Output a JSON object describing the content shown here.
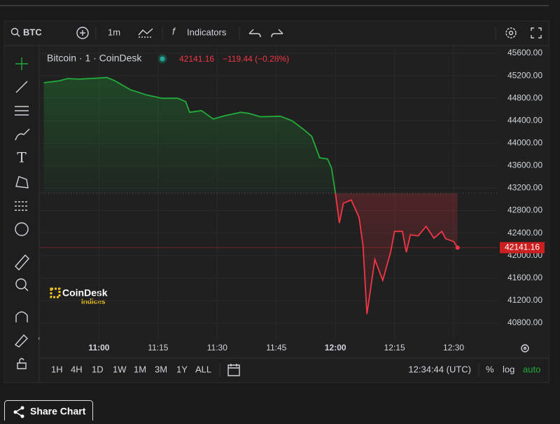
{
  "toolbar": {
    "symbol": "BTC",
    "interval": "1m",
    "indicators": "Indicators"
  },
  "legend": {
    "title": "Bitcoin · 1 · CoinDesk",
    "change": "−119.44 (−0.28%)"
  },
  "logo": {
    "name": "CoinDesk",
    "sub": "Indices"
  },
  "bottom": {
    "ranges": [
      "1H",
      "4H",
      "1D",
      "1W",
      "1M",
      "3M",
      "1Y",
      "ALL"
    ],
    "clock": "12:34:44 (UTC)",
    "percent": "%",
    "log": "log",
    "auto": "auto"
  },
  "share_button": "Share Chart",
  "chart_data": {
    "type": "line",
    "style": "baseline",
    "x": [
      "10:46",
      "10:50",
      "10:52",
      "10:55",
      "11:00",
      "11:02",
      "11:04",
      "11:08",
      "11:12",
      "11:16",
      "11:20",
      "11:22",
      "11:23",
      "11:26",
      "11:29",
      "11:32",
      "11:36",
      "11:38",
      "11:41",
      "11:46",
      "11:49",
      "11:52",
      "11:54",
      "11:56",
      "11:58",
      "11:59",
      "12:00",
      "12:01",
      "12:02",
      "12:04",
      "12:06",
      "12:07",
      "12:08",
      "12:10",
      "12:12",
      "12:14",
      "12:15",
      "12:17",
      "12:18",
      "12:19",
      "12:21",
      "12:23",
      "12:25",
      "12:27",
      "12:28",
      "12:30",
      "12:31"
    ],
    "values": [
      45076,
      45110,
      45150,
      45140,
      45160,
      45170,
      45110,
      44950,
      44860,
      44800,
      44800,
      44740,
      44550,
      44580,
      44430,
      44490,
      44550,
      44530,
      44470,
      44480,
      44400,
      44240,
      44120,
      43740,
      43720,
      43560,
      43110,
      42580,
      42930,
      42990,
      42680,
      42180,
      40960,
      41930,
      41560,
      42060,
      42430,
      42430,
      42060,
      42370,
      42350,
      42520,
      42310,
      42430,
      42300,
      42250,
      42141.16
    ],
    "baseline": 43110,
    "up_color": "#22ab3a",
    "down_color": "#f23645",
    "xlim": [
      "10:45",
      "12:41"
    ],
    "xticks": [
      "11:00",
      "11:15",
      "11:30",
      "11:45",
      "12:00",
      "12:15",
      "12:30"
    ],
    "ylim": [
      40500,
      45725
    ],
    "yticks": [
      {
        "value": 45600,
        "label": "45600.00"
      },
      {
        "value": 45200,
        "label": "45200.00"
      },
      {
        "value": 44800,
        "label": "44800.00"
      },
      {
        "value": 44400,
        "label": "44400.00"
      },
      {
        "value": 44000,
        "label": "44000.00"
      },
      {
        "value": 43600,
        "label": "43600.00"
      },
      {
        "value": 43200,
        "label": "43200.00"
      },
      {
        "value": 42800,
        "label": "42800.00"
      },
      {
        "value": 42400,
        "label": "42400.00"
      },
      {
        "value": 42000,
        "label": "42000.00"
      },
      {
        "value": 41600,
        "label": "41600.00"
      },
      {
        "value": 41200,
        "label": "41200.00"
      },
      {
        "value": 40800,
        "label": "40800.00"
      }
    ],
    "grid": true
  }
}
